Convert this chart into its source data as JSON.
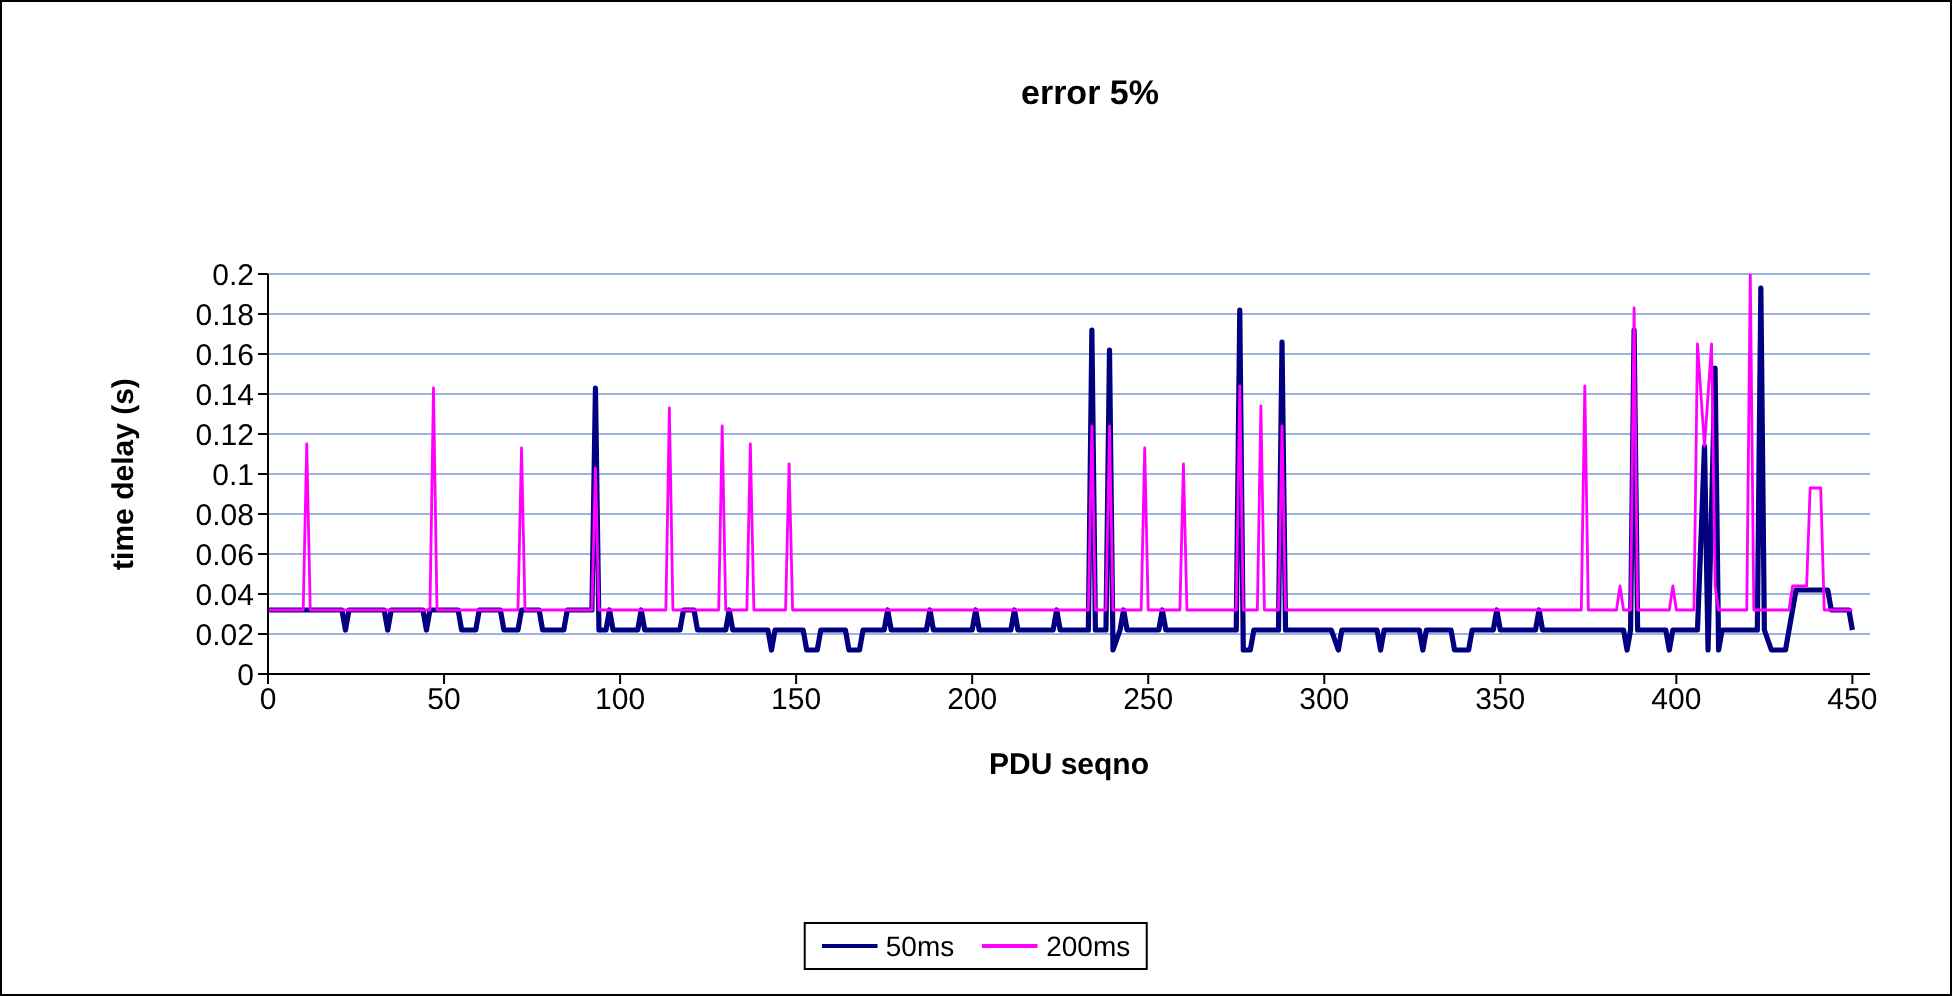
{
  "chart_data": {
    "type": "line",
    "title": "error 5%",
    "xlabel": "PDU seqno",
    "ylabel": "time delay (s)",
    "xlim": [
      0,
      455
    ],
    "xticks": [
      0,
      50,
      100,
      150,
      200,
      250,
      300,
      350,
      400,
      450
    ],
    "ylim": [
      0,
      0.2
    ],
    "yticks": [
      0,
      0.02,
      0.04,
      0.06,
      0.08,
      0.1,
      0.12,
      0.14,
      0.16,
      0.18,
      0.2
    ],
    "grid": "y",
    "legend": "bottom",
    "line_style": "solid",
    "series": [
      {
        "name": "50ms",
        "color": "#000080",
        "x": [
          0,
          21,
          22,
          23,
          33,
          34,
          35,
          44,
          45,
          46,
          54,
          55,
          59,
          60,
          66,
          67,
          71,
          72,
          77,
          78,
          84,
          85,
          92,
          93,
          94,
          96,
          97,
          98,
          105,
          106,
          107,
          117,
          118,
          121,
          122,
          130,
          131,
          132,
          142,
          143,
          144,
          152,
          153,
          156,
          157,
          164,
          165,
          168,
          169,
          175,
          176,
          177,
          187,
          188,
          189,
          200,
          201,
          202,
          211,
          212,
          213,
          223,
          224,
          225,
          233,
          234,
          235,
          238,
          239,
          240,
          242,
          243,
          244,
          253,
          254,
          255,
          275,
          276,
          277,
          279,
          280,
          287,
          288,
          289,
          302,
          304,
          305,
          315,
          316,
          317,
          327,
          328,
          329,
          336,
          337,
          341,
          342,
          348,
          349,
          350,
          360,
          361,
          362,
          385,
          386,
          387,
          388,
          389,
          397,
          398,
          399,
          406,
          408,
          409,
          411,
          412,
          413,
          423,
          424,
          425,
          427,
          431,
          432,
          434,
          443,
          444,
          449,
          450
        ],
        "values": [
          0.032,
          0.032,
          0.022,
          0.032,
          0.032,
          0.022,
          0.032,
          0.032,
          0.022,
          0.032,
          0.032,
          0.022,
          0.022,
          0.032,
          0.032,
          0.022,
          0.022,
          0.032,
          0.032,
          0.022,
          0.022,
          0.032,
          0.032,
          0.143,
          0.022,
          0.022,
          0.032,
          0.022,
          0.022,
          0.032,
          0.022,
          0.022,
          0.032,
          0.032,
          0.022,
          0.022,
          0.032,
          0.022,
          0.022,
          0.012,
          0.022,
          0.022,
          0.012,
          0.012,
          0.022,
          0.022,
          0.012,
          0.012,
          0.022,
          0.022,
          0.032,
          0.022,
          0.022,
          0.032,
          0.022,
          0.022,
          0.032,
          0.022,
          0.022,
          0.032,
          0.022,
          0.022,
          0.032,
          0.022,
          0.022,
          0.172,
          0.022,
          0.022,
          0.162,
          0.012,
          0.022,
          0.032,
          0.022,
          0.022,
          0.032,
          0.022,
          0.022,
          0.182,
          0.012,
          0.012,
          0.022,
          0.022,
          0.166,
          0.022,
          0.022,
          0.012,
          0.022,
          0.022,
          0.012,
          0.022,
          0.022,
          0.012,
          0.022,
          0.022,
          0.012,
          0.012,
          0.022,
          0.022,
          0.032,
          0.022,
          0.022,
          0.032,
          0.022,
          0.022,
          0.012,
          0.022,
          0.172,
          0.022,
          0.022,
          0.012,
          0.022,
          0.022,
          0.114,
          0.012,
          0.153,
          0.012,
          0.022,
          0.022,
          0.193,
          0.022,
          0.012,
          0.012,
          0.022,
          0.042,
          0.042,
          0.032,
          0.032,
          0.022
        ]
      },
      {
        "name": "200ms",
        "color": "#ff00ff",
        "x": [
          0,
          10,
          11,
          12,
          46,
          47,
          48,
          71,
          72,
          73,
          92,
          93,
          94,
          113,
          114,
          115,
          128,
          129,
          130,
          136,
          137,
          138,
          147,
          148,
          149,
          233,
          234,
          235,
          238,
          239,
          240,
          248,
          249,
          250,
          259,
          260,
          261,
          275,
          276,
          277,
          281,
          282,
          283,
          287,
          288,
          289,
          373,
          374,
          375,
          383,
          384,
          385,
          387,
          388,
          389,
          398,
          399,
          400,
          405,
          406,
          408,
          410,
          411,
          412,
          420,
          421,
          422,
          432,
          433,
          437,
          438,
          441,
          442,
          450
        ],
        "values": [
          0.032,
          0.032,
          0.115,
          0.032,
          0.032,
          0.143,
          0.032,
          0.032,
          0.113,
          0.032,
          0.032,
          0.103,
          0.032,
          0.032,
          0.133,
          0.032,
          0.032,
          0.124,
          0.032,
          0.032,
          0.115,
          0.032,
          0.032,
          0.105,
          0.032,
          0.032,
          0.124,
          0.032,
          0.032,
          0.124,
          0.032,
          0.032,
          0.113,
          0.032,
          0.032,
          0.105,
          0.032,
          0.032,
          0.144,
          0.032,
          0.032,
          0.134,
          0.032,
          0.032,
          0.124,
          0.032,
          0.032,
          0.144,
          0.032,
          0.032,
          0.044,
          0.032,
          0.032,
          0.183,
          0.032,
          0.032,
          0.044,
          0.032,
          0.032,
          0.165,
          0.114,
          0.165,
          0.044,
          0.032,
          0.032,
          0.2,
          0.032,
          0.032,
          0.044,
          0.044,
          0.093,
          0.093,
          0.032,
          0.032
        ]
      }
    ]
  }
}
